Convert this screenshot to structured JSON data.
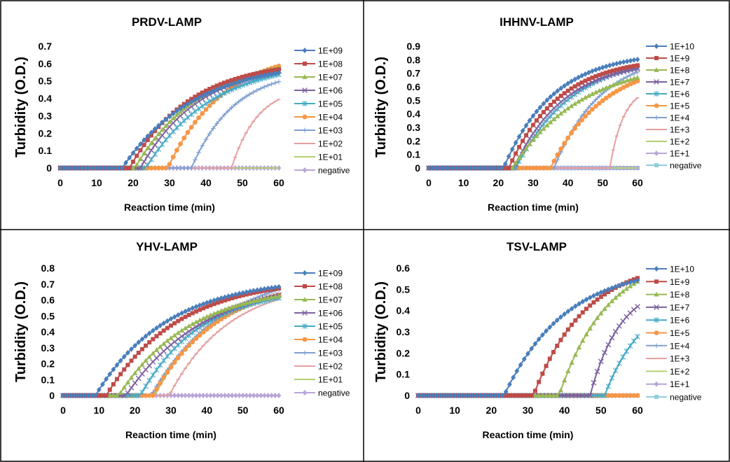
{
  "chart_data": [
    {
      "type": "line",
      "title": "PRDV-LAMP",
      "xlabel": "Reaction time (min)",
      "ylabel": "Turbidity (O.D.)",
      "xlim": [
        0,
        60
      ],
      "ylim": [
        0,
        0.7
      ],
      "xticks": [
        "0",
        "10",
        "20",
        "30",
        "40",
        "50",
        "60"
      ],
      "yticks": [
        "0",
        "0.1",
        "0.2",
        "0.3",
        "0.4",
        "0.5",
        "0.6",
        "0.7"
      ],
      "grid": false,
      "legend_position": "right",
      "series": [
        {
          "name": "1E+09",
          "color": "#4a7ebb",
          "marker": "diamond",
          "onset": 17,
          "max": 0.62,
          "k": 0.05
        },
        {
          "name": "1E+08",
          "color": "#be4b48",
          "marker": "square",
          "onset": 19,
          "max": 0.62,
          "k": 0.06
        },
        {
          "name": "1E+07",
          "color": "#98b954",
          "marker": "triangle",
          "onset": 20.5,
          "max": 0.65,
          "k": 0.055
        },
        {
          "name": "1E+06",
          "color": "#7d60a0",
          "marker": "x",
          "onset": 22,
          "max": 0.62,
          "k": 0.06
        },
        {
          "name": "1E+05",
          "color": "#46aac5",
          "marker": "star",
          "onset": 23.5,
          "max": 0.62,
          "k": 0.055
        },
        {
          "name": "1E+04",
          "color": "#f79646",
          "marker": "circle",
          "onset": 29.5,
          "max": 0.68,
          "k": 0.065
        },
        {
          "name": "1E+03",
          "color": "#7f9fd0",
          "marker": "plus",
          "onset": 36,
          "max": 0.57,
          "k": 0.085
        },
        {
          "name": "1E+02",
          "color": "#e6a0a0",
          "marker": "dash",
          "onset": 47,
          "max": 0.47,
          "k": 0.14
        },
        {
          "name": "1E+01",
          "color": "#b0d070",
          "marker": "none",
          "onset": null
        },
        {
          "name": "negative",
          "color": "#b9a6d6",
          "marker": "diamond",
          "onset": null
        }
      ]
    },
    {
      "type": "line",
      "title": "IHHNV-LAMP",
      "xlabel": "Reaction time (min)",
      "ylabel": "Turbidity (O.D.)",
      "xlim": [
        0,
        60
      ],
      "ylim": [
        0,
        0.9
      ],
      "xticks": [
        "0",
        "10",
        "20",
        "30",
        "40",
        "50",
        "60"
      ],
      "yticks": [
        "0",
        "0.1",
        "0.2",
        "0.3",
        "0.4",
        "0.5",
        "0.6",
        "0.7",
        "0.8",
        "0.9"
      ],
      "grid": false,
      "legend_position": "right",
      "series": [
        {
          "name": "1E+10",
          "color": "#4a7ebb",
          "marker": "diamond",
          "onset": 21.5,
          "max": 0.86,
          "k": 0.07
        },
        {
          "name": "1E+9",
          "color": "#be4b48",
          "marker": "square",
          "onset": 23,
          "max": 0.82,
          "k": 0.07
        },
        {
          "name": "1E+8",
          "color": "#98b954",
          "marker": "triangle",
          "onset": 24,
          "max": 0.8,
          "k": 0.05
        },
        {
          "name": "1E+7",
          "color": "#7d60a0",
          "marker": "x",
          "onset": 24.5,
          "max": 0.8,
          "k": 0.07
        },
        {
          "name": "1E+6",
          "color": "#46aac5",
          "marker": "star",
          "onset": 25,
          "max": 0.85,
          "k": 0.06
        },
        {
          "name": "1E+5",
          "color": "#f79646",
          "marker": "circle",
          "onset": 35,
          "max": 0.8,
          "k": 0.065
        },
        {
          "name": "1E+4",
          "color": "#7f9fd0",
          "marker": "plus",
          "onset": 36,
          "max": 0.85,
          "k": 0.075
        },
        {
          "name": "1E+3",
          "color": "#e6a0a0",
          "marker": "dash",
          "onset": 52,
          "max": 0.6,
          "k": 0.25
        },
        {
          "name": "1E+2",
          "color": "#b0d070",
          "marker": "none",
          "onset": null
        },
        {
          "name": "1E+1",
          "color": "#b9a6d6",
          "marker": "diamond",
          "onset": null
        },
        {
          "name": "negative",
          "color": "#93cddd",
          "marker": "square",
          "onset": null
        }
      ]
    },
    {
      "type": "line",
      "title": "YHV-LAMP",
      "xlabel": "Reaction time (min)",
      "ylabel": "Turbidity (O.D.)",
      "xlim": [
        0,
        60
      ],
      "ylim": [
        0,
        0.8
      ],
      "xticks": [
        "0",
        "10",
        "20",
        "30",
        "40",
        "50",
        "60"
      ],
      "yticks": [
        "0",
        "0.1",
        "0.2",
        "0.3",
        "0.4",
        "0.5",
        "0.6",
        "0.7",
        "0.8"
      ],
      "grid": false,
      "legend_position": "right",
      "series": [
        {
          "name": "1E+09",
          "color": "#4a7ebb",
          "marker": "diamond",
          "onset": 9,
          "max": 0.74,
          "k": 0.05
        },
        {
          "name": "1E+08",
          "color": "#be4b48",
          "marker": "square",
          "onset": 12,
          "max": 0.74,
          "k": 0.05
        },
        {
          "name": "1E+07",
          "color": "#98b954",
          "marker": "triangle",
          "onset": 15.5,
          "max": 0.7,
          "k": 0.05
        },
        {
          "name": "1E+06",
          "color": "#7d60a0",
          "marker": "x",
          "onset": 17.5,
          "max": 0.74,
          "k": 0.045
        },
        {
          "name": "1E+05",
          "color": "#46aac5",
          "marker": "star",
          "onset": 21.5,
          "max": 0.68,
          "k": 0.06
        },
        {
          "name": "1E+04",
          "color": "#f79646",
          "marker": "circle",
          "onset": 25,
          "max": 0.74,
          "k": 0.055
        },
        {
          "name": "1E+03",
          "color": "#7f9fd0",
          "marker": "plus",
          "onset": 24.5,
          "max": 0.8,
          "k": 0.05
        },
        {
          "name": "1E+02",
          "color": "#e6a0a0",
          "marker": "dash",
          "onset": 29.5,
          "max": 0.72,
          "k": 0.06
        },
        {
          "name": "1E+01",
          "color": "#b0d070",
          "marker": "none",
          "onset": 25.5,
          "max": 0.72,
          "k": 0.06
        },
        {
          "name": "negative",
          "color": "#b9a6d6",
          "marker": "diamond",
          "onset": null
        }
      ]
    },
    {
      "type": "line",
      "title": "TSV-LAMP",
      "xlabel": "Reaction time (min)",
      "ylabel": "Turbidity (O.D.)",
      "xlim": [
        0,
        60
      ],
      "ylim": [
        0,
        0.6
      ],
      "xticks": [
        "0",
        "10",
        "20",
        "30",
        "40",
        "50",
        "60"
      ],
      "yticks": [
        "0",
        "0.1",
        "0.2",
        "0.3",
        "0.4",
        "0.5",
        "0.6"
      ],
      "grid": false,
      "legend_position": "right",
      "series": [
        {
          "name": "1E+10",
          "color": "#4a7ebb",
          "marker": "diamond",
          "onset": 23.5,
          "max": 0.61,
          "k": 0.06
        },
        {
          "name": "1E+9",
          "color": "#be4b48",
          "marker": "square",
          "onset": 31.5,
          "max": 0.64,
          "k": 0.07
        },
        {
          "name": "1E+8",
          "color": "#98b954",
          "marker": "triangle",
          "onset": 38.5,
          "max": 0.67,
          "k": 0.075
        },
        {
          "name": "1E+7",
          "color": "#7d60a0",
          "marker": "x",
          "onset": 47,
          "max": 0.53,
          "k": 0.12
        },
        {
          "name": "1E+6",
          "color": "#46aac5",
          "marker": "star",
          "onset": 51,
          "max": 0.5,
          "k": 0.09
        },
        {
          "name": "1E+5",
          "color": "#f79646",
          "marker": "circle",
          "onset": null
        },
        {
          "name": "1E+4",
          "color": "#7f9fd0",
          "marker": "plus",
          "onset": null
        },
        {
          "name": "1E+3",
          "color": "#e6a0a0",
          "marker": "dash",
          "onset": null
        },
        {
          "name": "1E+2",
          "color": "#b0d070",
          "marker": "none",
          "onset": null
        },
        {
          "name": "1E+1",
          "color": "#b9a6d6",
          "marker": "diamond",
          "onset": null
        },
        {
          "name": "negative",
          "color": "#93cddd",
          "marker": "square",
          "onset": null
        }
      ]
    }
  ]
}
